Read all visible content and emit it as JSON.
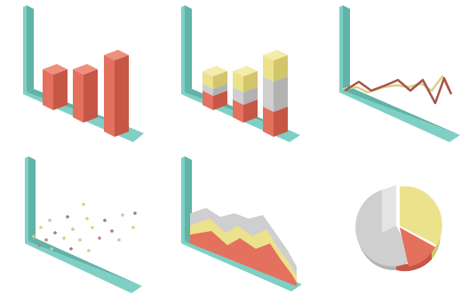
{
  "colors": {
    "axis_front": "#7fcfc4",
    "axis_side": "#5fb3a7",
    "bar_red_front": "#e4705e",
    "bar_red_side": "#c65646",
    "bar_red_top": "#ef8f7e",
    "yellow_front": "#ece28c",
    "yellow_side": "#d2c56b",
    "yellow_top": "#f4ecac",
    "gray_front": "#cfcfcf",
    "gray_side": "#b2b2b2",
    "gray_top": "#e4e4e4",
    "line_dark": "#a8534a",
    "line_light": "#d8d08a",
    "dot_colors": [
      "#d9cf7c",
      "#b9847a",
      "#c7c7a6",
      "#9e7d77"
    ]
  },
  "icons": [
    {
      "name": "bar-chart-icon",
      "kind": "bar"
    },
    {
      "name": "stacked-bar-chart-icon",
      "kind": "stacked-bar"
    },
    {
      "name": "line-chart-icon",
      "kind": "line"
    },
    {
      "name": "scatter-plot-icon",
      "kind": "scatter"
    },
    {
      "name": "area-chart-icon",
      "kind": "area"
    },
    {
      "name": "pie-chart-icon",
      "kind": "pie"
    }
  ]
}
